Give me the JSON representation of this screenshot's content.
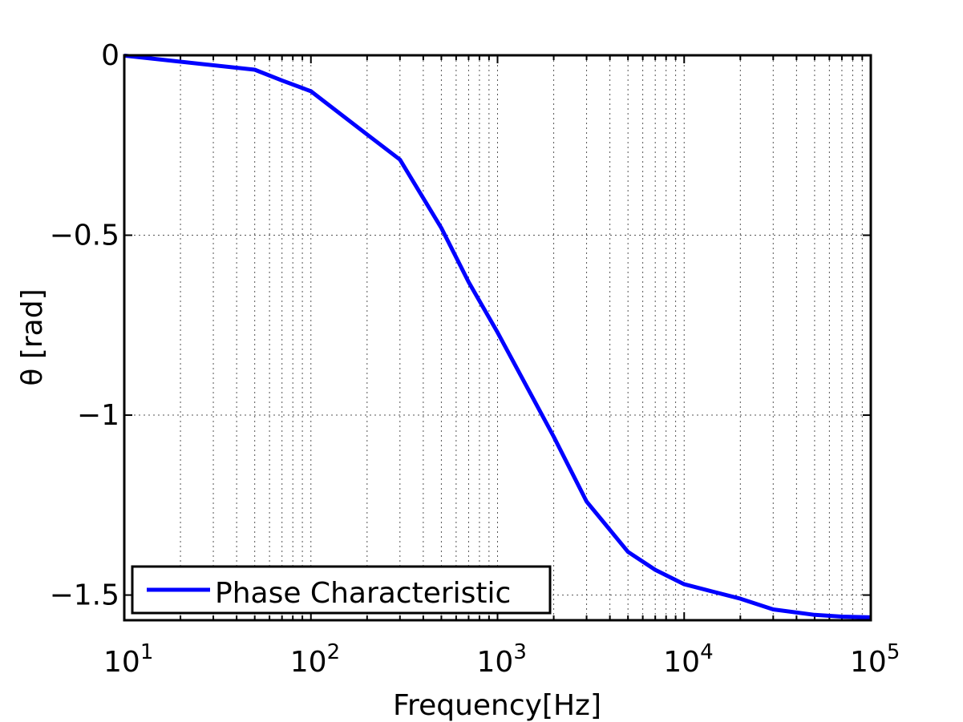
{
  "chart_data": {
    "type": "line",
    "title": "",
    "xlabel": "Frequency[Hz]",
    "ylabel": "θ [rad]",
    "xscale": "log",
    "xlim": [
      10,
      100000
    ],
    "ylim": [
      -1.57,
      0
    ],
    "x_ticks": [
      {
        "value": 10,
        "base": "10",
        "exp": "1"
      },
      {
        "value": 100,
        "base": "10",
        "exp": "2"
      },
      {
        "value": 1000,
        "base": "10",
        "exp": "3"
      },
      {
        "value": 10000,
        "base": "10",
        "exp": "4"
      },
      {
        "value": 100000,
        "base": "10",
        "exp": "5"
      }
    ],
    "y_ticks": [
      {
        "value": 0,
        "label": "0"
      },
      {
        "value": -0.5,
        "label": "−0.5"
      },
      {
        "value": -1,
        "label": "−1"
      },
      {
        "value": -1.5,
        "label": "−1.5"
      }
    ],
    "grid": true,
    "legend_position": "bottom-left",
    "series": [
      {
        "name": "Phase Characteristic",
        "color": "#0000ff",
        "x": [
          10,
          50,
          70,
          100,
          200,
          300,
          500,
          700,
          1000,
          2000,
          3000,
          5000,
          7000,
          10000,
          20000,
          30000,
          50000,
          70000,
          100000
        ],
        "y": [
          -0.001,
          -0.04,
          -0.07,
          -0.1,
          -0.22,
          -0.29,
          -0.48,
          -0.63,
          -0.77,
          -1.06,
          -1.24,
          -1.38,
          -1.43,
          -1.47,
          -1.51,
          -1.54,
          -1.555,
          -1.56,
          -1.562
        ]
      }
    ]
  }
}
